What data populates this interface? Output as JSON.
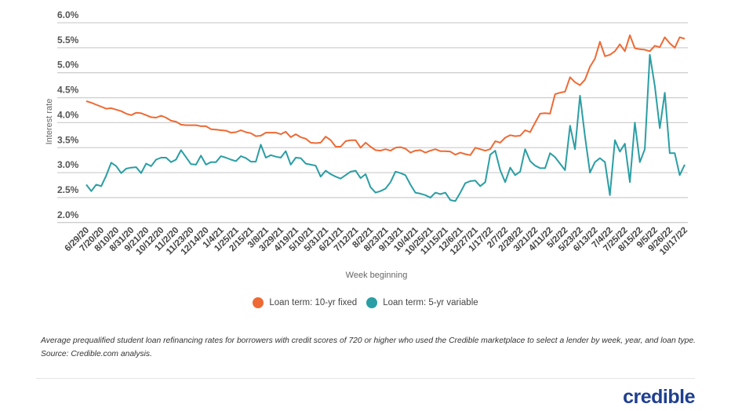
{
  "chart_data": {
    "type": "line",
    "title": "",
    "xlabel": "Week beginning",
    "ylabel": "Interest rate",
    "ylim": [
      2.0,
      6.0
    ],
    "y_ticks": [
      "2.0%",
      "2.5%",
      "3.0%",
      "3.5%",
      "4.0%",
      "4.5%",
      "5.0%",
      "5.5%",
      "6.0%"
    ],
    "grid": true,
    "legend_position": "bottom",
    "x_frequency": "weekly",
    "x_start": "6/29/20",
    "x_end": "10/17/22",
    "x_tick_labels": [
      "6/29/20",
      "7/20/20",
      "8/10/20",
      "8/31/20",
      "9/21/20",
      "10/12/20",
      "11/2/20",
      "11/23/20",
      "12/14/20",
      "1/4/21",
      "1/25/21",
      "2/15/21",
      "3/8/21",
      "3/29/21",
      "4/19/21",
      "5/10/21",
      "5/31/21",
      "6/21/21",
      "7/12/21",
      "8/2/21",
      "8/23/21",
      "9/13/21",
      "10/4/21",
      "10/25/21",
      "11/15/21",
      "12/6/21",
      "12/27/21",
      "1/17/22",
      "2/7/22",
      "2/28/22",
      "3/21/22",
      "4/11/22",
      "5/2/22",
      "5/23/22",
      "6/13/22",
      "7/4/22",
      "7/25/22",
      "8/15/22",
      "9/5/22",
      "9/26/22",
      "10/17/22"
    ],
    "series": [
      {
        "name": "Loan term: 10-yr fixed",
        "color": "#ee6a34",
        "values": [
          4.43,
          4.4,
          4.36,
          4.32,
          4.28,
          4.29,
          4.26,
          4.23,
          4.18,
          4.15,
          4.2,
          4.19,
          4.15,
          4.11,
          4.1,
          4.14,
          4.1,
          4.04,
          4.02,
          3.96,
          3.95,
          3.95,
          3.95,
          3.93,
          3.93,
          3.87,
          3.86,
          3.85,
          3.84,
          3.8,
          3.81,
          3.85,
          3.81,
          3.79,
          3.73,
          3.74,
          3.8,
          3.8,
          3.8,
          3.77,
          3.82,
          3.71,
          3.77,
          3.71,
          3.68,
          3.6,
          3.59,
          3.6,
          3.72,
          3.65,
          3.52,
          3.52,
          3.63,
          3.65,
          3.65,
          3.5,
          3.6,
          3.52,
          3.45,
          3.44,
          3.47,
          3.44,
          3.5,
          3.51,
          3.48,
          3.4,
          3.44,
          3.45,
          3.4,
          3.44,
          3.47,
          3.43,
          3.43,
          3.42,
          3.36,
          3.4,
          3.37,
          3.35,
          3.5,
          3.47,
          3.44,
          3.47,
          3.63,
          3.6,
          3.7,
          3.75,
          3.73,
          3.74,
          3.85,
          3.81,
          4.0,
          4.18,
          4.19,
          4.18,
          4.57,
          4.6,
          4.62,
          4.91,
          4.81,
          4.75,
          4.86,
          5.12,
          5.28,
          5.62,
          5.33,
          5.36,
          5.43,
          5.57,
          5.43,
          5.75,
          5.49,
          5.47,
          5.46,
          5.43,
          5.54,
          5.51,
          5.71,
          5.59,
          5.5,
          5.71,
          5.68
        ]
      },
      {
        "name": "Loan term: 5-yr variable",
        "color": "#2a9ea4",
        "values": [
          2.76,
          2.63,
          2.76,
          2.73,
          2.94,
          3.2,
          3.13,
          2.99,
          3.08,
          3.1,
          3.11,
          2.99,
          3.18,
          3.13,
          3.26,
          3.3,
          3.3,
          3.21,
          3.26,
          3.45,
          3.31,
          3.17,
          3.16,
          3.34,
          3.16,
          3.21,
          3.21,
          3.33,
          3.3,
          3.26,
          3.23,
          3.33,
          3.29,
          3.22,
          3.22,
          3.56,
          3.3,
          3.35,
          3.32,
          3.3,
          3.43,
          3.16,
          3.3,
          3.29,
          3.18,
          3.16,
          3.14,
          2.92,
          3.04,
          2.97,
          2.92,
          2.88,
          2.95,
          3.02,
          3.04,
          2.89,
          2.97,
          2.71,
          2.6,
          2.63,
          2.68,
          2.81,
          3.02,
          2.99,
          2.95,
          2.76,
          2.6,
          2.58,
          2.55,
          2.5,
          2.6,
          2.57,
          2.6,
          2.45,
          2.43,
          2.6,
          2.79,
          2.83,
          2.84,
          2.73,
          2.81,
          3.36,
          3.44,
          3.05,
          2.81,
          3.1,
          2.95,
          3.02,
          3.47,
          3.23,
          3.14,
          3.09,
          3.09,
          3.39,
          3.31,
          3.18,
          3.05,
          3.94,
          3.47,
          4.54,
          3.73,
          3.0,
          3.21,
          3.29,
          3.21,
          2.55,
          3.65,
          3.42,
          3.58,
          2.81,
          4.0,
          3.21,
          3.47,
          5.36,
          4.73,
          3.89,
          4.6,
          3.39,
          3.39,
          2.95,
          3.16
        ]
      }
    ]
  },
  "legend": {
    "items": [
      {
        "label": "Loan term: 10-yr fixed",
        "color": "#ee6a34"
      },
      {
        "label": "Loan term: 5-yr variable",
        "color": "#2a9ea4"
      }
    ]
  },
  "caption": "Average prequalified student loan refinancing rates for borrowers with credit scores of 720 or higher who used the Credible marketplace to select a lender by week, year, and loan type. Source: Credible.com analysis.",
  "logo": "credible"
}
